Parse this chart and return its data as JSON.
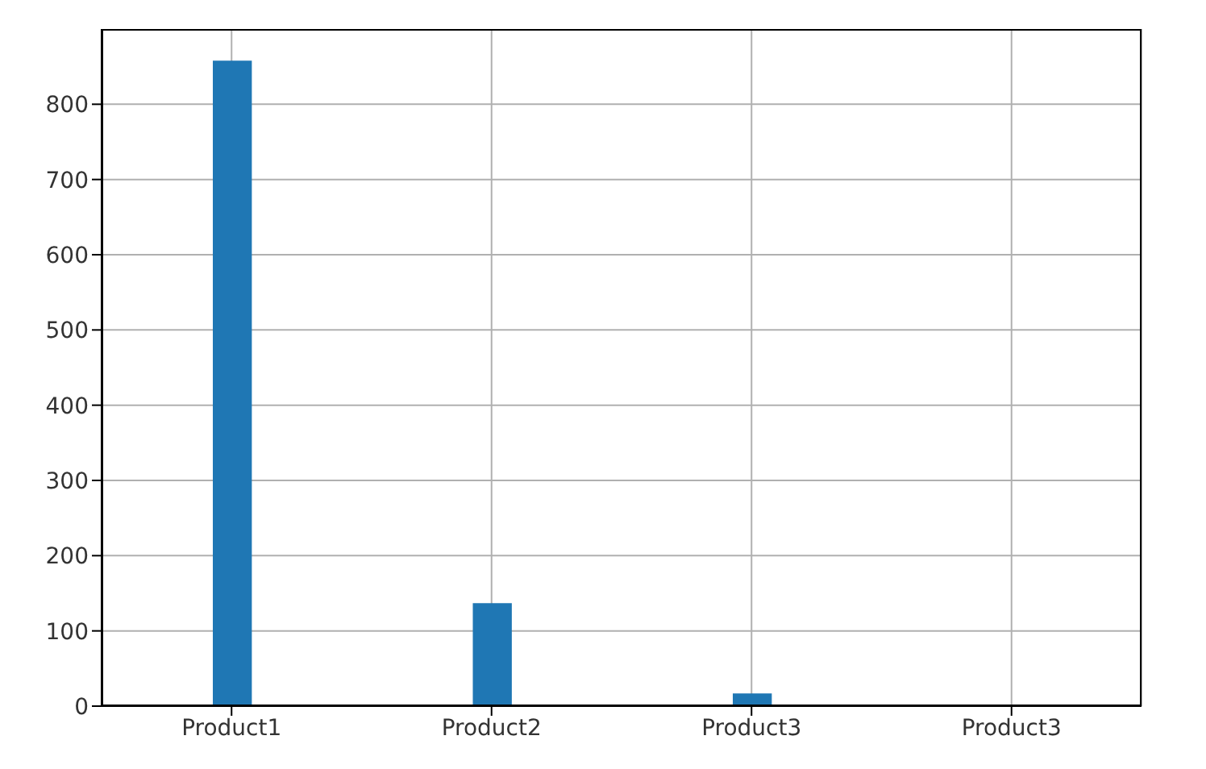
{
  "chart_data": {
    "type": "bar",
    "categories": [
      "Product1",
      "Product2",
      "Product3",
      "Product3"
    ],
    "values": [
      858,
      137,
      17,
      0
    ],
    "color": "#1f77b4",
    "ylim": [
      0,
      900
    ],
    "yticks": [
      0,
      100,
      200,
      300,
      400,
      500,
      600,
      700,
      800
    ],
    "grid": true
  }
}
